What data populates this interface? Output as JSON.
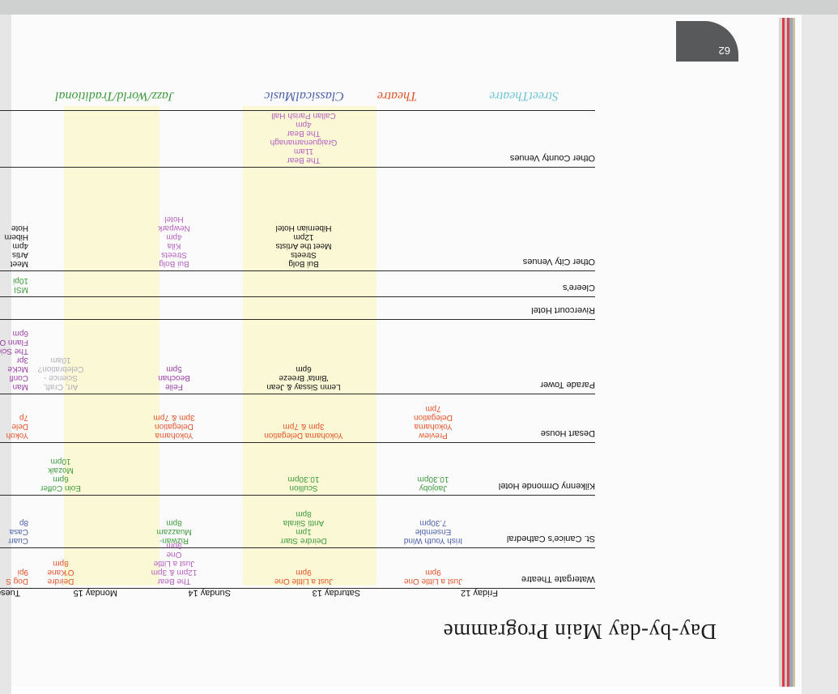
{
  "page": {
    "number": "62",
    "title": "Day-by-day Main Programme"
  },
  "legend": [
    {
      "label": "StreetTheatre",
      "color": "#6fc6d8"
    },
    {
      "label": "Theatre",
      "color": "#e2542a"
    },
    {
      "label": "ClassicalMusic",
      "color": "#4a5fa8"
    },
    {
      "label": "Jazz/World/Traditional",
      "color": "#3d9a3c"
    }
  ],
  "colors": {
    "rule": "#2a2a2a",
    "highlight": "#fbf8d6",
    "tag": "#58595b"
  },
  "days": [
    "Friday 12",
    "Saturday 13",
    "Sunday 14",
    "Monday 15",
    "Tuesday"
  ],
  "venues": [
    {
      "label": "Watergate Theatre",
      "cells": [
        {
          "lines": [
            "Just a Little One",
            "9pm"
          ],
          "color": "#e2542a"
        },
        {
          "lines": [
            "Just a Little One",
            "9pm"
          ],
          "color": "#e2542a"
        },
        {
          "lines": [
            "The Bear",
            "12pm & 3pm",
            "Just a Little",
            "One",
            "9pm"
          ],
          "color": "#b55fbf"
        },
        {
          "lines": [
            "Deirdre",
            "O'Kane",
            "8pm"
          ],
          "color": "#e2542a"
        },
        {
          "lines": [
            "Dog S",
            "9pi"
          ],
          "color": "#e2542a"
        }
      ]
    },
    {
      "label": "St. Canice's Cathedral",
      "cells": [
        {
          "lines": [
            "Irish Youth Wind",
            "Ensemble",
            "7.30pm"
          ],
          "color": "#4a5fa8"
        },
        {
          "lines": [
            "Deirdre Starr",
            "1pm",
            "Antti Siirala",
            "8pm"
          ],
          "color": "#3d9a3c"
        },
        {
          "lines": [
            "Rizwan-",
            "Muazzam",
            "8pm"
          ],
          "color": "#3d9a3c"
        },
        {
          "lines": [],
          "color": "#3d9a3c"
        },
        {
          "lines": [
            "Cuarr",
            "Casa",
            "8p"
          ],
          "color": "#4a5fa8"
        }
      ]
    },
    {
      "label": "Kilkenny Ormonde Hotel",
      "cells": [
        {
          "lines": [
            "Jaojoby",
            "10.30pm"
          ],
          "color": "#3d9a3c"
        },
        {
          "lines": [
            "Scullion",
            "10.30pm"
          ],
          "color": "#3d9a3c"
        },
        {
          "lines": [],
          "color": "#3d9a3c"
        },
        {
          "lines": [
            "Eoin Coffer",
            "6pm",
            "Mozaik",
            "10pm"
          ],
          "color": "#3d9a3c"
        },
        {
          "lines": [],
          "color": "#3d9a3c"
        }
      ]
    },
    {
      "label": "Desart House",
      "cells": [
        {
          "lines": [
            "Preview",
            "Yokohama",
            "Delegation",
            "7pm"
          ],
          "color": "#e2542a"
        },
        {
          "lines": [
            "Yokohama Delegation",
            "3pm & 7pm"
          ],
          "color": "#e2542a"
        },
        {
          "lines": [
            "Yokohama",
            "Delegation",
            "3pm & 7pm"
          ],
          "color": "#e2542a"
        },
        {
          "lines": [],
          "color": "#e2542a"
        },
        {
          "lines": [
            "Yokoh",
            "Dele",
            "7p"
          ],
          "color": "#e2542a"
        }
      ]
    },
    {
      "label": "Parade Tower",
      "cells": [
        {
          "lines": [],
          "color": "#111111"
        },
        {
          "lines": [
            "Lemn Sissay & Jean",
            "'Binta' Breeze",
            "6pm"
          ],
          "color": "#111111"
        },
        {
          "lines": [
            "Feile",
            "Beochan",
            "5pm"
          ],
          "color": "#9b3fa6"
        },
        {
          "lines": [
            "Art, Craft,",
            "Science -",
            "Celebration?",
            "10am"
          ],
          "color": "#b0aeb8"
        },
        {
          "lines": [
            "Man",
            "Confl",
            "McKe",
            "3pr",
            "The Scie",
            "Flann O'",
            "6pm"
          ],
          "color": "#9b3fa6"
        }
      ]
    },
    {
      "label": "Rivercourt Hotel",
      "cells": [
        {
          "lines": [],
          "color": "#111111"
        },
        {
          "lines": [],
          "color": "#111111"
        },
        {
          "lines": [],
          "color": "#111111"
        },
        {
          "lines": [],
          "color": "#111111"
        },
        {
          "lines": [],
          "color": "#111111"
        }
      ]
    },
    {
      "label": "Cleere's",
      "cells": [
        {
          "lines": [],
          "color": "#3d9a3c"
        },
        {
          "lines": [],
          "color": "#3d9a3c"
        },
        {
          "lines": [],
          "color": "#3d9a3c"
        },
        {
          "lines": [],
          "color": "#3d9a3c"
        },
        {
          "lines": [
            "MSI",
            "10pi"
          ],
          "color": "#3d9a3c"
        }
      ]
    },
    {
      "label": "Other City Venues",
      "cells": [
        {
          "lines": [],
          "color": "#111111"
        },
        {
          "lines": [
            "Bui Bolg",
            "Streets",
            "Meet the Artists",
            "12pm",
            "Hibernian Hotel"
          ],
          "color": "#111111"
        },
        {
          "lines": [
            "Bui Bolg",
            "Streets",
            "Kila",
            "4pm",
            "Newpark",
            "Hotel"
          ],
          "color": "#b55fbf"
        },
        {
          "lines": [],
          "color": "#111111"
        },
        {
          "lines": [
            "Meet",
            "Artis",
            "4pm",
            "Hibern",
            "Hote"
          ],
          "color": "#111111"
        }
      ]
    },
    {
      "label": "Other County Venues",
      "cells": [
        {
          "lines": [],
          "color": "#e2542a"
        },
        {
          "lines": [
            "The Bear",
            "11am",
            "Graiguenamanagh",
            "The Bear",
            "4pm",
            "Callan Parish Hall"
          ],
          "color": "#b55fbf"
        },
        {
          "lines": [],
          "color": "#e2542a"
        },
        {
          "lines": [],
          "color": "#e2542a"
        },
        {
          "lines": [],
          "color": "#e2542a"
        }
      ]
    }
  ]
}
